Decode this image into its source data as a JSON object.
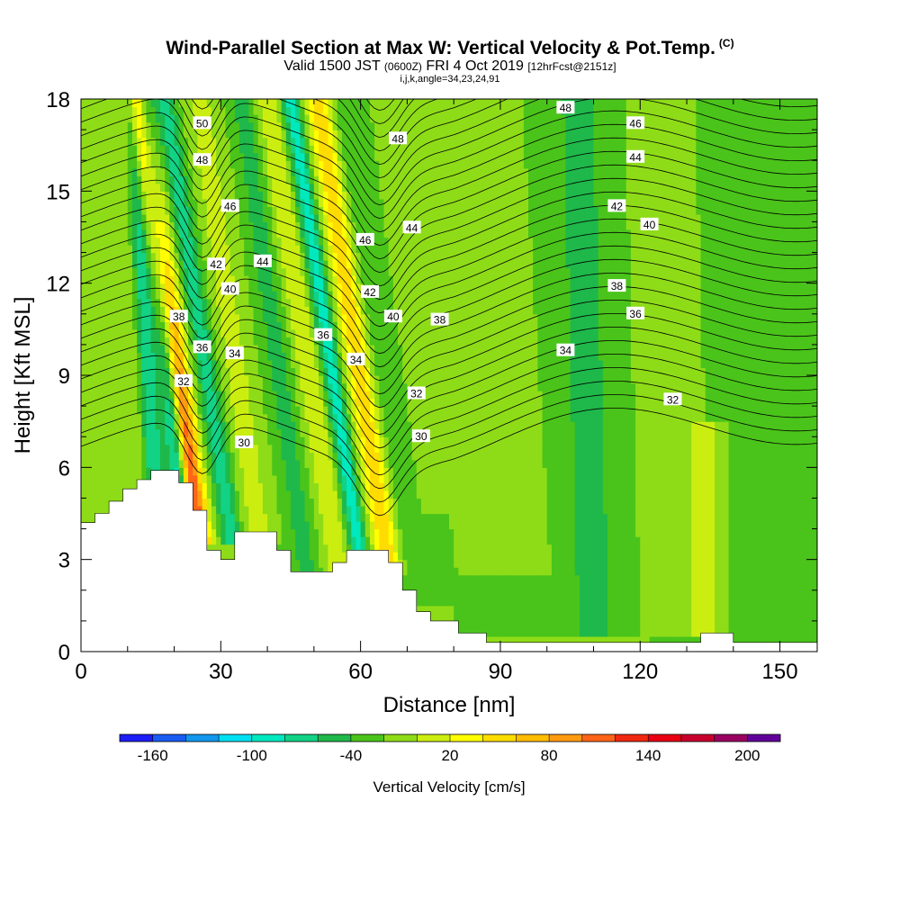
{
  "title": {
    "main": "Wind-Parallel Section at Max W: Vertical Velocity & Pot.Temp.",
    "copyright": "(C)",
    "valid_prefix": "Valid 1500 JST",
    "valid_utc": "(0600Z)",
    "valid_date": "FRI 4 Oct 2019",
    "forecast": "[12hrFcst@2151z]",
    "indices": "i,j,k,angle=34,23,24,91"
  },
  "chart_data": {
    "type": "heatmap",
    "xlabel": "Distance [nm]",
    "ylabel": "Height [Kft MSL]",
    "xlim": [
      0,
      158
    ],
    "ylim": [
      0,
      18
    ],
    "x_ticks": [
      0,
      30,
      60,
      90,
      120,
      150
    ],
    "y_ticks": [
      0,
      3,
      6,
      9,
      12,
      15,
      18
    ],
    "colorbar": {
      "title": "Vertical Velocity [cm/s]",
      "min": -170,
      "step": 20,
      "labels": [
        -160,
        -100,
        -40,
        20,
        80,
        140,
        200
      ],
      "colors": [
        "#1d1df5",
        "#1a5cf2",
        "#1296ee",
        "#00e0f2",
        "#00e8be",
        "#12d285",
        "#1fb84a",
        "#4ac41a",
        "#8edc18",
        "#cbee10",
        "#ffff00",
        "#ffdc00",
        "#ffbc00",
        "#ff9a10",
        "#ff6418",
        "#f02810",
        "#e80012",
        "#c8002e",
        "#9a0060",
        "#60009a"
      ]
    },
    "velocity_field": {
      "background": -10,
      "features": [
        {
          "x": 25,
          "y0": 4,
          "y1": 18,
          "slope": -0.9,
          "width": 2.5,
          "value": 150
        },
        {
          "x": 22,
          "y0": 4,
          "y1": 18,
          "slope": -0.6,
          "width": 2.0,
          "value": -110
        },
        {
          "x": 32,
          "y0": 4,
          "y1": 18,
          "slope": -1.0,
          "width": 2.2,
          "value": -50
        },
        {
          "x": 12,
          "y0": 5,
          "y1": 18,
          "slope": -0.3,
          "width": 2.5,
          "value": 20
        },
        {
          "x": 16,
          "y0": 5,
          "y1": 18,
          "slope": -0.4,
          "width": 2.0,
          "value": -60
        },
        {
          "x": 38,
          "y0": 4,
          "y1": 18,
          "slope": -0.9,
          "width": 3.0,
          "value": 30
        },
        {
          "x": 48,
          "y0": 3,
          "y1": 18,
          "slope": -0.9,
          "width": 2.5,
          "value": -30
        },
        {
          "x": 55,
          "y0": 3,
          "y1": 18,
          "slope": -1.0,
          "width": 2.5,
          "value": 40
        },
        {
          "x": 60,
          "y0": 3,
          "y1": 18,
          "slope": -1.0,
          "width": 2.0,
          "value": -70
        },
        {
          "x": 66,
          "y0": 3,
          "y1": 18,
          "slope": -1.0,
          "width": 3.0,
          "value": 80
        },
        {
          "x": 70,
          "y0": 2,
          "y1": 18,
          "slope": -1.0,
          "width": 3.0,
          "value": -20
        },
        {
          "x": 80,
          "y0": 5,
          "y1": 18,
          "slope": -0.6,
          "width": 4.0,
          "value": 20
        },
        {
          "x": 95,
          "y0": 3,
          "y1": 18,
          "slope": -0.6,
          "width": 4.0,
          "value": 10
        },
        {
          "x": 110,
          "y0": 1,
          "y1": 18,
          "slope": -0.2,
          "width": 5.0,
          "value": -30
        },
        {
          "x": 126,
          "y0": 1,
          "y1": 18,
          "slope": -0.2,
          "width": 4.0,
          "value": 5
        },
        {
          "x": 134,
          "y0": 1,
          "y1": 7,
          "slope": 0,
          "width": 3.0,
          "value": 40
        },
        {
          "x": 145,
          "y0": 0.5,
          "y1": 18,
          "slope": -0.2,
          "width": 4.0,
          "value": -10
        }
      ]
    },
    "terrain": [
      {
        "x": 0,
        "h": 4.2
      },
      {
        "x": 3,
        "h": 4.5
      },
      {
        "x": 6,
        "h": 4.9
      },
      {
        "x": 9,
        "h": 5.3
      },
      {
        "x": 12,
        "h": 5.6
      },
      {
        "x": 15,
        "h": 5.9
      },
      {
        "x": 18,
        "h": 5.9
      },
      {
        "x": 21,
        "h": 5.5
      },
      {
        "x": 24,
        "h": 4.6
      },
      {
        "x": 27,
        "h": 3.3
      },
      {
        "x": 30,
        "h": 3.0
      },
      {
        "x": 33,
        "h": 3.9
      },
      {
        "x": 36,
        "h": 3.9
      },
      {
        "x": 39,
        "h": 3.9
      },
      {
        "x": 42,
        "h": 3.3
      },
      {
        "x": 45,
        "h": 2.6
      },
      {
        "x": 48,
        "h": 2.6
      },
      {
        "x": 51,
        "h": 2.6
      },
      {
        "x": 54,
        "h": 2.9
      },
      {
        "x": 57,
        "h": 3.3
      },
      {
        "x": 60,
        "h": 3.3
      },
      {
        "x": 63,
        "h": 3.3
      },
      {
        "x": 66,
        "h": 2.9
      },
      {
        "x": 69,
        "h": 2.0
      },
      {
        "x": 72,
        "h": 1.3
      },
      {
        "x": 75,
        "h": 1.0
      },
      {
        "x": 78,
        "h": 1.0
      },
      {
        "x": 81,
        "h": 0.6
      },
      {
        "x": 84,
        "h": 0.6
      },
      {
        "x": 87,
        "h": 0.3
      },
      {
        "x": 90,
        "h": 0.3
      },
      {
        "x": 132,
        "h": 0.3
      },
      {
        "x": 133,
        "h": 0.6
      },
      {
        "x": 139,
        "h": 0.6
      },
      {
        "x": 140,
        "h": 0.3
      },
      {
        "x": 158,
        "h": 0.3
      }
    ],
    "contour_labels": [
      {
        "text": "50",
        "x": 26,
        "y": 17.2
      },
      {
        "text": "48",
        "x": 26,
        "y": 16.0
      },
      {
        "text": "46",
        "x": 32,
        "y": 14.5
      },
      {
        "text": "42",
        "x": 29,
        "y": 12.6
      },
      {
        "text": "44",
        "x": 39,
        "y": 12.7
      },
      {
        "text": "40",
        "x": 32,
        "y": 11.8
      },
      {
        "text": "38",
        "x": 21,
        "y": 10.9
      },
      {
        "text": "36",
        "x": 26,
        "y": 9.9
      },
      {
        "text": "34",
        "x": 33,
        "y": 9.7
      },
      {
        "text": "32",
        "x": 22,
        "y": 8.8
      },
      {
        "text": "30",
        "x": 35,
        "y": 6.8
      },
      {
        "text": "48",
        "x": 68,
        "y": 16.7
      },
      {
        "text": "44",
        "x": 71,
        "y": 13.8
      },
      {
        "text": "46",
        "x": 61,
        "y": 13.4
      },
      {
        "text": "42",
        "x": 62,
        "y": 11.7
      },
      {
        "text": "40",
        "x": 67,
        "y": 10.9
      },
      {
        "text": "38",
        "x": 77,
        "y": 10.8
      },
      {
        "text": "36",
        "x": 52,
        "y": 10.3
      },
      {
        "text": "34",
        "x": 59,
        "y": 9.5
      },
      {
        "text": "32",
        "x": 72,
        "y": 8.4
      },
      {
        "text": "30",
        "x": 73,
        "y": 7.0
      },
      {
        "text": "48",
        "x": 104,
        "y": 17.7
      },
      {
        "text": "46",
        "x": 119,
        "y": 17.2
      },
      {
        "text": "44",
        "x": 119,
        "y": 16.1
      },
      {
        "text": "42",
        "x": 115,
        "y": 14.5
      },
      {
        "text": "40",
        "x": 122,
        "y": 13.9
      },
      {
        "text": "38",
        "x": 115,
        "y": 11.9
      },
      {
        "text": "36",
        "x": 119,
        "y": 11.0
      },
      {
        "text": "34",
        "x": 104,
        "y": 9.8
      },
      {
        "text": "32",
        "x": 127,
        "y": 8.2
      }
    ]
  }
}
